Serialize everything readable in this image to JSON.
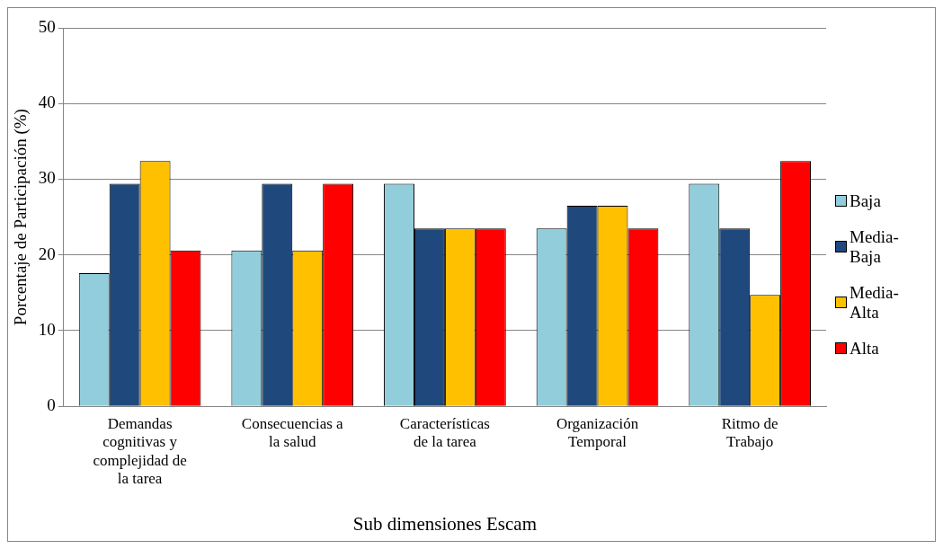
{
  "chart_data": {
    "type": "bar",
    "xlabel": "Sub dimensiones Escam",
    "ylabel": "Porcentaje de Participación (%)",
    "categories": [
      "Demandas cognitivas y complejidad de la tarea",
      "Consecuencias a la salud",
      "Características de la tarea",
      "Organización Temporal",
      "Ritmo de Trabajo"
    ],
    "series": [
      {
        "name": "Baja",
        "color": "#92cddc",
        "values": [
          17.6,
          20.6,
          29.4,
          23.5,
          29.4
        ]
      },
      {
        "name": "Media-Baja",
        "color": "#1f497d",
        "values": [
          29.4,
          29.4,
          23.5,
          26.5,
          23.5
        ]
      },
      {
        "name": "Media-Alta",
        "color": "#ffc000",
        "values": [
          32.4,
          20.6,
          23.5,
          26.5,
          14.7
        ]
      },
      {
        "name": "Alta",
        "color": "#ff0000",
        "values": [
          20.6,
          29.4,
          23.5,
          23.5,
          32.4
        ]
      }
    ],
    "ylim": [
      0,
      50
    ],
    "yticks": [
      0,
      10,
      20,
      30,
      40,
      50
    ],
    "grid": "y",
    "legend": "right"
  }
}
